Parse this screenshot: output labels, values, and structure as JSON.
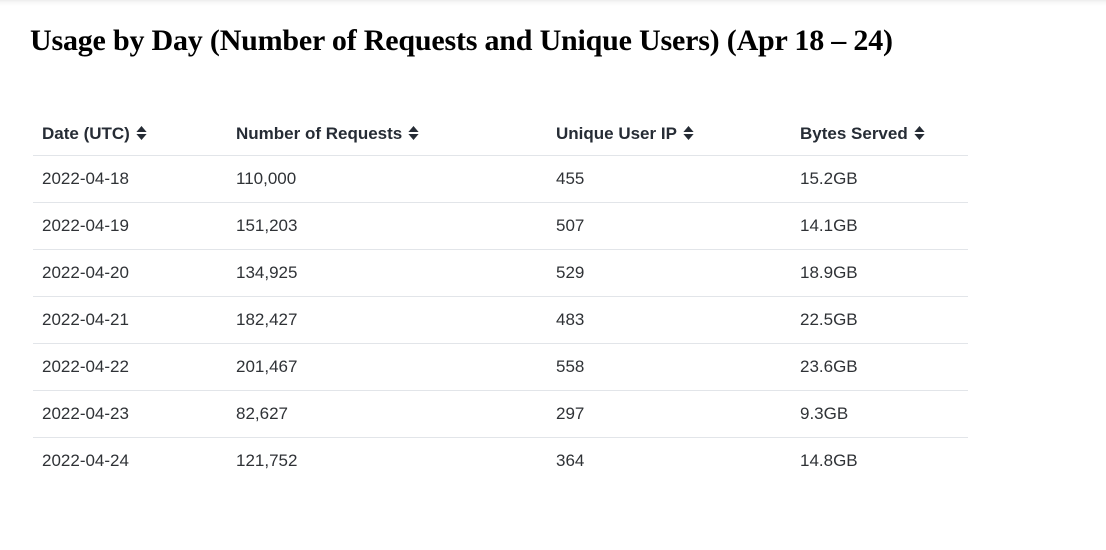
{
  "title": "Usage by Day (Number of Requests and Unique Users) (Apr 18 – 24)",
  "table": {
    "columns": [
      {
        "label": "Date (UTC)",
        "sortable": true
      },
      {
        "label": "Number of Requests",
        "sortable": true
      },
      {
        "label": "Unique User IP",
        "sortable": true
      },
      {
        "label": "Bytes Served",
        "sortable": true
      }
    ],
    "rows": [
      {
        "date": "2022-04-18",
        "requests": "110,000",
        "unique_users": "455",
        "bytes": "15.2GB"
      },
      {
        "date": "2022-04-19",
        "requests": "151,203",
        "unique_users": "507",
        "bytes": "14.1GB"
      },
      {
        "date": "2022-04-20",
        "requests": "134,925",
        "unique_users": "529",
        "bytes": "18.9GB"
      },
      {
        "date": "2022-04-21",
        "requests": "182,427",
        "unique_users": "483",
        "bytes": "22.5GB"
      },
      {
        "date": "2022-04-22",
        "requests": "201,467",
        "unique_users": "558",
        "bytes": "23.6GB"
      },
      {
        "date": "2022-04-23",
        "requests": "82,627",
        "unique_users": "297",
        "bytes": "9.3GB"
      },
      {
        "date": "2022-04-24",
        "requests": "121,752",
        "unique_users": "364",
        "bytes": "14.8GB"
      }
    ]
  },
  "icons": {
    "sort": "sort-arrows-icon"
  },
  "colors": {
    "header_text": "#262c35",
    "body_text": "#2f3236",
    "divider": "#e2e5e9",
    "background": "#ffffff",
    "title_text": "#000000"
  }
}
